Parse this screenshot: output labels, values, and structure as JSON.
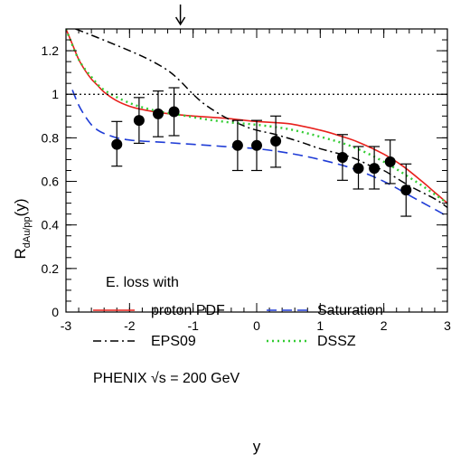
{
  "chart_data": {
    "type": "scatter",
    "title": "",
    "xlabel": "y",
    "ylabel_main": "R",
    "ylabel_sub": "dAu/pp",
    "ylabel_suffix": "(y)",
    "xlim": [
      -3,
      3
    ],
    "ylim": [
      0,
      1.3
    ],
    "x_ticks": [
      -3,
      -2,
      -1,
      0,
      1,
      2,
      3
    ],
    "x_tick_labels": [
      "-3",
      "-2",
      "-1",
      "0",
      "1",
      "2",
      "3"
    ],
    "y_ticks": [
      0,
      0.2,
      0.4,
      0.6,
      0.8,
      1,
      1.2
    ],
    "y_tick_labels": [
      "0",
      "0.2",
      "0.4",
      "0.6",
      "0.8",
      "1",
      "1.2"
    ],
    "reference_line": {
      "y": 1,
      "style": "dotted"
    },
    "arrow_marker": {
      "x": -1.2,
      "direction": "down"
    },
    "data_points": {
      "x": [
        -2.2,
        -1.85,
        -1.55,
        -1.3,
        -0.3,
        0.0,
        0.3,
        1.35,
        1.6,
        1.85,
        2.1,
        2.35
      ],
      "y": [
        0.77,
        0.88,
        0.91,
        0.92,
        0.765,
        0.765,
        0.785,
        0.71,
        0.66,
        0.66,
        0.69,
        0.56
      ],
      "err_low": [
        0.67,
        0.775,
        0.805,
        0.81,
        0.65,
        0.65,
        0.665,
        0.605,
        0.565,
        0.565,
        0.59,
        0.44
      ],
      "err_high": [
        0.875,
        0.985,
        1.015,
        1.03,
        0.88,
        0.88,
        0.9,
        0.815,
        0.76,
        0.76,
        0.79,
        0.68
      ]
    },
    "series": [
      {
        "name": "proton PDF",
        "color": "#e8201c",
        "dash": "solid",
        "x": [
          -3.0,
          -2.9,
          -2.8,
          -2.7,
          -2.6,
          -2.5,
          -2.4,
          -2.2,
          -2.0,
          -1.8,
          -1.5,
          -1.2,
          -1.0,
          -0.5,
          0.0,
          0.5,
          1.0,
          1.3,
          1.6,
          2.0,
          2.3,
          2.6,
          2.8,
          3.0
        ],
        "y": [
          1.3,
          1.23,
          1.16,
          1.11,
          1.07,
          1.04,
          1.01,
          0.97,
          0.945,
          0.93,
          0.915,
          0.905,
          0.9,
          0.89,
          0.875,
          0.865,
          0.835,
          0.81,
          0.78,
          0.725,
          0.67,
          0.6,
          0.55,
          0.5
        ]
      },
      {
        "name": "Saturation",
        "color": "#1f3cd6",
        "dash": "dashed",
        "x": [
          -2.9,
          -2.8,
          -2.7,
          -2.6,
          -2.5,
          -2.4,
          -2.2,
          -2.0,
          -1.8,
          -1.5,
          -1.0,
          -0.5,
          0.0,
          0.5,
          1.0,
          1.5,
          2.0,
          2.5,
          3.0
        ],
        "y": [
          1.02,
          0.95,
          0.9,
          0.86,
          0.835,
          0.82,
          0.8,
          0.79,
          0.785,
          0.78,
          0.77,
          0.76,
          0.75,
          0.73,
          0.7,
          0.66,
          0.6,
          0.52,
          0.44
        ]
      },
      {
        "name": "EPS09",
        "color": "#000000",
        "dash": "dashdot",
        "x": [
          -2.85,
          -2.5,
          -2.0,
          -1.7,
          -1.4,
          -1.2,
          -1.0,
          -0.8,
          -0.5,
          -0.2,
          0.0,
          0.3,
          0.7,
          1.0,
          1.5,
          1.8,
          2.0,
          2.4,
          2.8,
          3.0
        ],
        "y": [
          1.3,
          1.26,
          1.2,
          1.16,
          1.11,
          1.06,
          1.0,
          0.95,
          0.895,
          0.855,
          0.835,
          0.815,
          0.78,
          0.75,
          0.71,
          0.67,
          0.65,
          0.58,
          0.52,
          0.48
        ]
      },
      {
        "name": "DSSZ",
        "color": "#33cc33",
        "dash": "dotted",
        "x": [
          -3.0,
          -2.8,
          -2.6,
          -2.4,
          -2.0,
          -1.6,
          -1.2,
          -0.8,
          -0.4,
          0.0,
          0.5,
          1.0,
          1.5,
          2.0,
          2.5,
          3.0
        ],
        "y": [
          1.3,
          1.16,
          1.08,
          1.02,
          0.96,
          0.925,
          0.905,
          0.885,
          0.87,
          0.86,
          0.84,
          0.805,
          0.76,
          0.69,
          0.6,
          0.5
        ]
      }
    ],
    "legend": {
      "header": "E. loss with",
      "placement": "bottom-left",
      "footer": "PHENIX √s = 200 GeV"
    }
  }
}
